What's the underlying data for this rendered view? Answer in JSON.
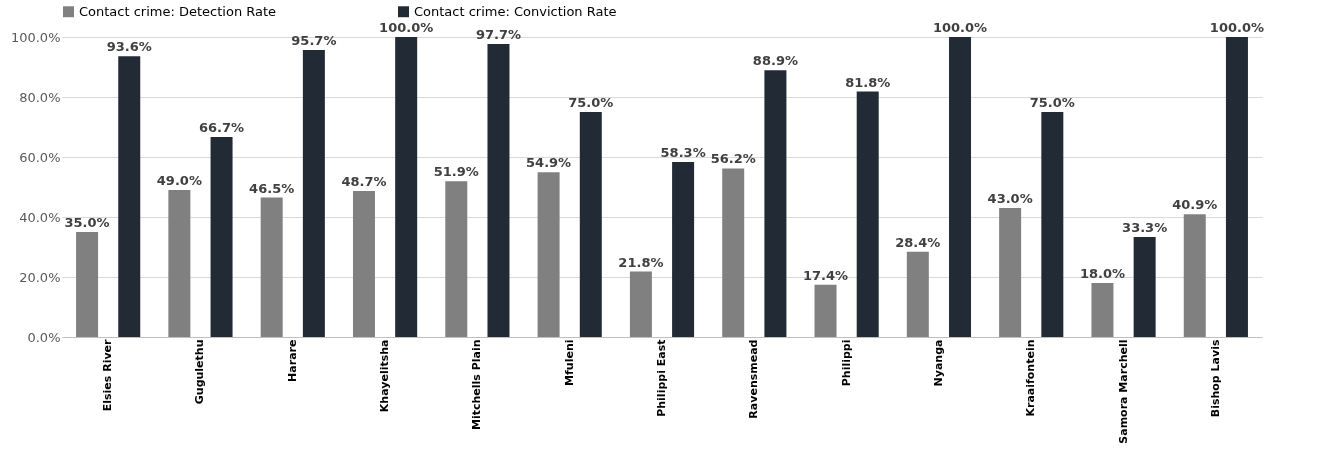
{
  "chart_data": {
    "type": "bar",
    "categories": [
      "Elsies River",
      "Gugulethu",
      "Harare",
      "Khayelitsha",
      "Mitchells Plain",
      "Mfuleni",
      "Philippi East",
      "Ravensmead",
      "Philippi",
      "Nyanga",
      "Kraaifontein",
      "Samora Marchell",
      "Bishop Lavis"
    ],
    "series": [
      {
        "name": "Contact crime: Detection Rate",
        "color": "#808080",
        "values": [
          35.0,
          49.0,
          46.5,
          48.7,
          51.9,
          54.9,
          21.8,
          56.2,
          17.4,
          28.4,
          43.0,
          18.0,
          40.9
        ],
        "value_labels": [
          "35.0%",
          "49.0%",
          "46.5%",
          "48.7%",
          "51.9%",
          "54.9%",
          "21.8%",
          "56.2%",
          "17.4%",
          "28.4%",
          "43.0%",
          "18.0%",
          "40.9%"
        ]
      },
      {
        "name": "Contact crime: Conviction Rate",
        "color": "#222a35",
        "values": [
          93.6,
          66.7,
          95.7,
          100.0,
          97.7,
          75.0,
          58.3,
          88.9,
          81.8,
          100.0,
          75.0,
          33.3,
          100.0
        ],
        "value_labels": [
          "93.6%",
          "66.7%",
          "95.7%",
          "100.0%",
          "97.7%",
          "75.0%",
          "58.3%",
          "88.9%",
          "81.8%",
          "100.0%",
          "75.0%",
          "33.3%",
          "100.0%"
        ]
      }
    ],
    "ylim": [
      0,
      100
    ],
    "yticks": [
      {
        "value": 0,
        "label": "0.0%"
      },
      {
        "value": 20,
        "label": "20.0%"
      },
      {
        "value": 40,
        "label": "40.0%"
      },
      {
        "value": 60,
        "label": "60.0%"
      },
      {
        "value": 80,
        "label": "80.0%"
      },
      {
        "value": 100,
        "label": "100.0%"
      }
    ],
    "grid": "y",
    "legend": "top"
  }
}
